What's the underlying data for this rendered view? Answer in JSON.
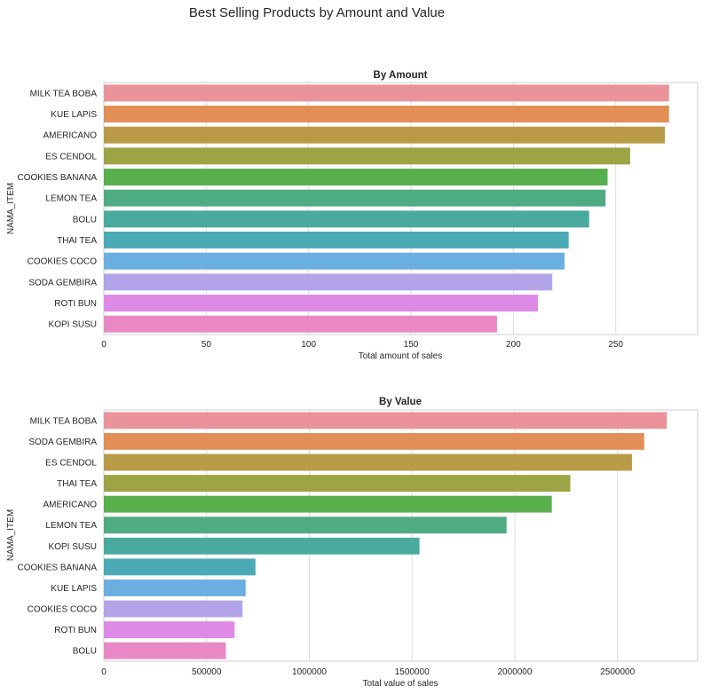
{
  "suptitle": "Best Selling Products by Amount and Value",
  "colors": [
    "#ea939a",
    "#e18f57",
    "#b99b47",
    "#9ca443",
    "#59ae4d",
    "#4fac82",
    "#4aaa9d",
    "#4ca9b6",
    "#6baee0",
    "#b3a4ea",
    "#df8ae7",
    "#e889c6"
  ],
  "chart_data": [
    {
      "type": "bar",
      "orientation": "horizontal",
      "title": "By Amount",
      "xlabel": "Total amount of sales",
      "ylabel": "NAMA_ITEM",
      "categories": [
        "MILK TEA BOBA",
        "KUE LAPIS",
        "AMERICANO",
        "ES CENDOL",
        "COOKIES BANANA",
        "LEMON TEA",
        "BOLU",
        "THAI TEA",
        "COOKIES COCO",
        "SODA GEMBIRA",
        "ROTI BUN",
        "KOPI SUSU"
      ],
      "values": [
        276,
        276,
        274,
        257,
        246,
        245,
        237,
        227,
        225,
        219,
        212,
        192
      ],
      "xlim": [
        0,
        290
      ],
      "xticks": [
        0,
        50,
        100,
        150,
        200,
        250
      ],
      "xtick_labels": [
        "0",
        "50",
        "100",
        "150",
        "200",
        "250"
      ],
      "grid": true
    },
    {
      "type": "bar",
      "orientation": "horizontal",
      "title": "By Value",
      "xlabel": "Total value of sales",
      "ylabel": "NAMA_ITEM",
      "categories": [
        "MILK TEA BOBA",
        "SODA GEMBIRA",
        "ES CENDOL",
        "THAI TEA",
        "AMERICANO",
        "LEMON TEA",
        "KOPI SUSU",
        "COOKIES BANANA",
        "KUE LAPIS",
        "COOKIES COCO",
        "ROTI BUN",
        "BOLU"
      ],
      "values": [
        2740000,
        2630000,
        2570000,
        2270000,
        2180000,
        1960000,
        1536000,
        738000,
        690000,
        675000,
        636000,
        594000
      ],
      "xlim": [
        0,
        2890000
      ],
      "xticks": [
        0,
        500000,
        1000000,
        1500000,
        2000000,
        2500000
      ],
      "xtick_labels": [
        "0",
        "500000",
        "1000000",
        "1500000",
        "2000000",
        "2500000"
      ],
      "grid": true
    }
  ]
}
